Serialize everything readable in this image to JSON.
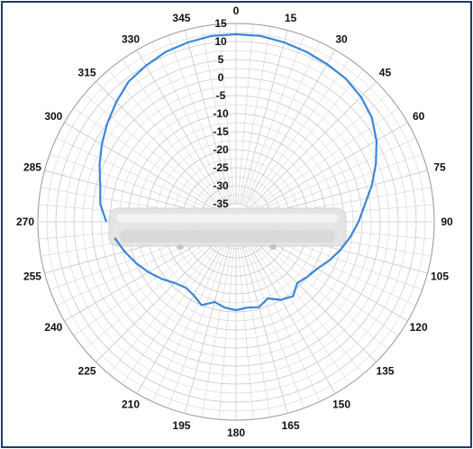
{
  "chart_data": {
    "type": "polar-line",
    "title": "",
    "angle_direction": "clockwise",
    "angle_zero": "top",
    "angle_tick_labels": [
      "0",
      "15",
      "30",
      "45",
      "60",
      "75",
      "90",
      "105",
      "120",
      "135",
      "150",
      "165",
      "180",
      "195",
      "210",
      "225",
      "240",
      "255",
      "270",
      "285",
      "300",
      "315",
      "330",
      "345"
    ],
    "radial_tick_labels": [
      "15",
      "10",
      "5",
      "0",
      "-5",
      "-10",
      "-15",
      "-20",
      "-25",
      "-30",
      "-35"
    ],
    "radial_range": [
      -40,
      15
    ],
    "grid": true,
    "series": [
      {
        "color": "#3a86d8",
        "angles": [
          270,
          277.5,
          285,
          292.5,
          300,
          307.5,
          315,
          322.5,
          330,
          337.5,
          345,
          352.5,
          0,
          7.5,
          15,
          22.5,
          30,
          37.5,
          45,
          52.5,
          60,
          67.5,
          75,
          82.5,
          90,
          97.5,
          105,
          112.5,
          120,
          127.5,
          135,
          142.5,
          150,
          157.5,
          165,
          172.5,
          180,
          187.5,
          195,
          202.5,
          210,
          217.5,
          225,
          232.5,
          240,
          247.5,
          255,
          262.5
        ],
        "values": [
          -4,
          -2,
          -1,
          1,
          3,
          5,
          7,
          9,
          10,
          11,
          11.5,
          12,
          12,
          12,
          11.5,
          11,
          10.5,
          10,
          9,
          7.5,
          5,
          2,
          -1,
          -4,
          -6,
          -8,
          -10,
          -12,
          -14,
          -15,
          -16,
          -14,
          -15,
          -17,
          -15.5,
          -16,
          -15.5,
          -16,
          -17,
          -15,
          -16.5,
          -17,
          -16,
          -14,
          -12,
          -10,
          -8,
          -6
        ]
      }
    ]
  },
  "colors": {
    "frame": "#1f3b6d",
    "grid": "#c8c8c8",
    "series": "#3a86d8",
    "device": "#d6d6d6"
  },
  "icons": {
    "device": "device-silhouette"
  }
}
